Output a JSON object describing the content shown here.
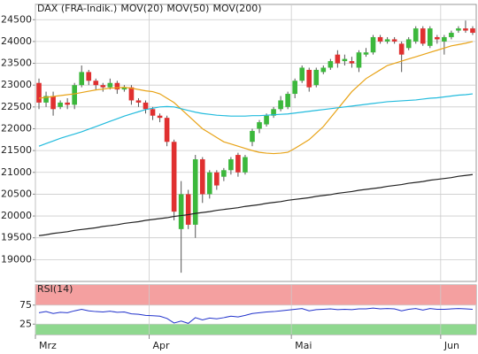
{
  "chart_data": [
    {
      "type": "candlestick",
      "categories": [
        "Mrz",
        null,
        null,
        null,
        null,
        null,
        null,
        null,
        null,
        null,
        null,
        null,
        null,
        null,
        null,
        null,
        "Apr",
        null,
        null,
        null,
        null,
        null,
        null,
        null,
        null,
        null,
        null,
        null,
        null,
        null,
        null,
        null,
        null,
        null,
        null,
        null,
        "Mai",
        null,
        null,
        null,
        null,
        null,
        null,
        null,
        null,
        null,
        null,
        null,
        null,
        null,
        null,
        null,
        null,
        null,
        null,
        null,
        null,
        "Jun",
        null,
        null,
        null,
        null
      ],
      "series": [
        {
          "name": "DAX (FRA-Indik.)",
          "color": "#e03030",
          "up_color": "#3cb83c",
          "open": [
            23050,
            22600,
            22750,
            22500,
            22600,
            22550,
            23000,
            23300,
            23100,
            23000,
            22950,
            23050,
            22900,
            22950,
            22650,
            22600,
            22450,
            22300,
            22250,
            21700,
            19700,
            20500,
            19800,
            21300,
            20500,
            21000,
            20900,
            21050,
            21400,
            21000,
            21700,
            22000,
            22100,
            22300,
            22450,
            22500,
            22800,
            23100,
            23350,
            23000,
            23300,
            23400,
            23700,
            23550,
            23550,
            23400,
            23700,
            23750,
            24100,
            24000,
            24050,
            23950,
            23850,
            24000,
            24300,
            23900,
            24100,
            24000,
            24100,
            24250,
            24300,
            24300
          ],
          "high": [
            23150,
            22850,
            22850,
            22650,
            22700,
            23050,
            23450,
            23350,
            23150,
            23050,
            23150,
            23100,
            23000,
            23000,
            22700,
            22650,
            22500,
            22350,
            22300,
            21750,
            20800,
            20600,
            21400,
            21350,
            21050,
            21050,
            21100,
            21350,
            21450,
            21400,
            22000,
            22200,
            22350,
            22500,
            22750,
            22850,
            23150,
            23450,
            23400,
            23400,
            23450,
            23600,
            23800,
            23700,
            23650,
            23800,
            23850,
            24150,
            24150,
            24100,
            24100,
            24000,
            24100,
            24350,
            24350,
            24350,
            24150,
            24150,
            24250,
            24350,
            24480,
            24350
          ],
          "low": [
            22450,
            22500,
            22300,
            22450,
            22450,
            22450,
            22950,
            23000,
            22900,
            22850,
            22900,
            22800,
            22850,
            22550,
            22500,
            22350,
            22200,
            22150,
            21600,
            19900,
            18700,
            19700,
            19500,
            20300,
            20400,
            20600,
            20800,
            20950,
            20900,
            20950,
            21600,
            21900,
            22050,
            22250,
            22400,
            22450,
            22700,
            23050,
            22850,
            22950,
            23250,
            23350,
            23400,
            23450,
            23400,
            23300,
            23650,
            23700,
            23950,
            23950,
            23950,
            23300,
            23800,
            23950,
            23900,
            23850,
            23950,
            23700,
            24050,
            24200,
            24200,
            24150
          ],
          "close": [
            22600,
            22750,
            22450,
            22600,
            22550,
            23000,
            23300,
            23100,
            23000,
            22950,
            23050,
            22900,
            22950,
            22650,
            22600,
            22450,
            22300,
            22250,
            21700,
            20100,
            20500,
            19800,
            21300,
            20500,
            21000,
            20700,
            21050,
            21300,
            21000,
            21350,
            21950,
            22150,
            22300,
            22450,
            22650,
            22800,
            23100,
            23400,
            22950,
            23350,
            23400,
            23550,
            23500,
            23600,
            23500,
            23750,
            23750,
            24100,
            24000,
            24050,
            24000,
            23700,
            24050,
            24300,
            23950,
            24300,
            24050,
            24100,
            24200,
            24300,
            24250,
            24200
          ]
        },
        {
          "name": "MOV(20)",
          "color": "#e8a317",
          "values": [
            22700,
            22720,
            22740,
            22760,
            22780,
            22800,
            22830,
            22860,
            22890,
            22910,
            22930,
            22940,
            22950,
            22930,
            22900,
            22870,
            22850,
            22800,
            22700,
            22600,
            22450,
            22300,
            22150,
            22000,
            21900,
            21800,
            21700,
            21650,
            21600,
            21550,
            21500,
            21460,
            21440,
            21430,
            21440,
            21460,
            21550,
            21650,
            21750,
            21900,
            22050,
            22250,
            22450,
            22650,
            22850,
            23000,
            23150,
            23250,
            23350,
            23450,
            23500,
            23550,
            23600,
            23650,
            23700,
            23750,
            23800,
            23850,
            23900,
            23930,
            23960,
            24000
          ]
        },
        {
          "name": "MOV(50)",
          "color": "#22bbdd",
          "values": [
            21600,
            21660,
            21720,
            21780,
            21830,
            21880,
            21930,
            21990,
            22050,
            22110,
            22170,
            22230,
            22290,
            22340,
            22390,
            22440,
            22470,
            22500,
            22510,
            22500,
            22460,
            22420,
            22380,
            22350,
            22330,
            22310,
            22300,
            22290,
            22290,
            22290,
            22300,
            22300,
            22310,
            22320,
            22330,
            22340,
            22360,
            22380,
            22400,
            22420,
            22440,
            22460,
            22480,
            22500,
            22520,
            22540,
            22560,
            22580,
            22600,
            22620,
            22630,
            22640,
            22650,
            22660,
            22680,
            22700,
            22710,
            22730,
            22750,
            22770,
            22780,
            22800
          ]
        },
        {
          "name": "MOV(200)",
          "color": "#222222",
          "values": [
            19550,
            19570,
            19600,
            19620,
            19640,
            19670,
            19690,
            19710,
            19730,
            19760,
            19780,
            19800,
            19830,
            19850,
            19870,
            19900,
            19920,
            19940,
            19960,
            19990,
            20010,
            20030,
            20060,
            20080,
            20100,
            20130,
            20150,
            20170,
            20190,
            20220,
            20240,
            20260,
            20290,
            20310,
            20330,
            20360,
            20380,
            20400,
            20420,
            20450,
            20470,
            20490,
            20520,
            20540,
            20560,
            20590,
            20610,
            20630,
            20650,
            20680,
            20700,
            20720,
            20750,
            20770,
            20790,
            20820,
            20840,
            20860,
            20880,
            20910,
            20930,
            20950
          ]
        }
      ],
      "ylim": [
        18500,
        24850
      ],
      "yticks": [
        19000,
        19500,
        20000,
        20500,
        21000,
        21500,
        22000,
        22500,
        23000,
        23500,
        24000,
        24500
      ],
      "grid": true
    },
    {
      "type": "line",
      "series": [
        {
          "name": "RSI(14)",
          "color": "#2233cc",
          "values": [
            55,
            58,
            53,
            56,
            55,
            60,
            64,
            60,
            58,
            57,
            59,
            56,
            57,
            52,
            51,
            48,
            47,
            46,
            40,
            28,
            33,
            27,
            42,
            36,
            41,
            39,
            42,
            46,
            44,
            48,
            53,
            55,
            57,
            58,
            60,
            62,
            64,
            66,
            60,
            63,
            64,
            65,
            63,
            64,
            63,
            65,
            65,
            67,
            65,
            66,
            65,
            60,
            64,
            66,
            62,
            66,
            64,
            64,
            65,
            66,
            65,
            64
          ]
        }
      ],
      "ylim": [
        0,
        100
      ],
      "yticks": [
        25,
        75
      ],
      "band_colors": [
        "#8fd88f",
        "#f4a0a0"
      ],
      "grid": true
    }
  ]
}
